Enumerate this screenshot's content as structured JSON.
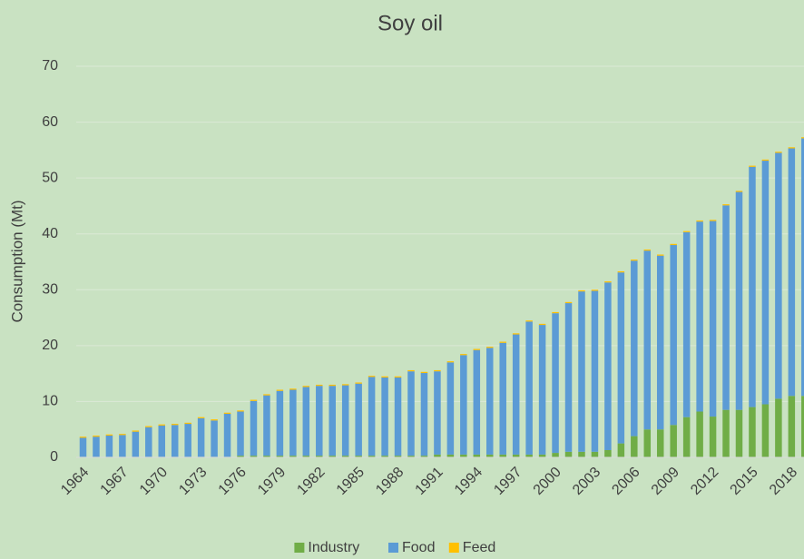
{
  "chart_data": {
    "type": "bar",
    "stacked": true,
    "title": "Soy oil",
    "y_label": "Consumption (Mt)",
    "categories": [
      "1964",
      null,
      null,
      "1967",
      null,
      null,
      "1970",
      null,
      null,
      "1973",
      null,
      null,
      "1976",
      null,
      null,
      "1979",
      null,
      null,
      "1982",
      null,
      null,
      "1985",
      null,
      null,
      "1988",
      null,
      null,
      "1991",
      null,
      null,
      "1994",
      null,
      null,
      "1997",
      null,
      null,
      "2000",
      null,
      null,
      "2003",
      null,
      null,
      "2006",
      null,
      null,
      "2009",
      null,
      null,
      "2012",
      null,
      null,
      "2015",
      null,
      null,
      "2018",
      null
    ],
    "series": [
      {
        "name": "Industry",
        "color": "#70ad47",
        "values": [
          0.1,
          0.1,
          0.1,
          0.1,
          0.1,
          0.1,
          0.1,
          0.1,
          0.1,
          0.1,
          0.1,
          0.1,
          0.3,
          0.3,
          0.3,
          0.3,
          0.3,
          0.3,
          0.3,
          0.3,
          0.3,
          0.3,
          0.3,
          0.3,
          0.3,
          0.3,
          0.3,
          0.5,
          0.5,
          0.5,
          0.5,
          0.5,
          0.5,
          0.5,
          0.5,
          0.5,
          0.8,
          1.0,
          1.0,
          1.0,
          1.3,
          2.5,
          3.8,
          5.0,
          5.0,
          5.8,
          7.2,
          8.2,
          7.3,
          8.5,
          8.5,
          9.0,
          9.5,
          10.5,
          11.0,
          11.0
        ]
      },
      {
        "name": "Food",
        "color": "#5b9bd5",
        "values": [
          3.4,
          3.6,
          3.8,
          3.9,
          4.5,
          5.3,
          5.6,
          5.7,
          5.9,
          6.9,
          6.5,
          7.7,
          7.9,
          9.8,
          10.8,
          11.6,
          11.8,
          12.3,
          12.5,
          12.5,
          12.6,
          12.9,
          14.1,
          14.0,
          14.0,
          15.1,
          14.8,
          14.9,
          16.5,
          17.8,
          18.7,
          19.1,
          20.0,
          21.5,
          23.8,
          23.2,
          25.0,
          26.6,
          28.7,
          28.8,
          30.0,
          30.6,
          31.4,
          32.0,
          31.1,
          32.2,
          33.1,
          34.0,
          35.0,
          36.6,
          39.0,
          43.0,
          43.6,
          44.0,
          44.3,
          46.1
        ]
      },
      {
        "name": "Feed",
        "color": "#ffc000",
        "values": [
          0.2,
          0.2,
          0.2,
          0.2,
          0.2,
          0.2,
          0.2,
          0.2,
          0.2,
          0.2,
          0.2,
          0.2,
          0.2,
          0.2,
          0.2,
          0.2,
          0.2,
          0.2,
          0.2,
          0.2,
          0.2,
          0.2,
          0.2,
          0.2,
          0.2,
          0.2,
          0.2,
          0.2,
          0.2,
          0.2,
          0.2,
          0.2,
          0.2,
          0.2,
          0.2,
          0.2,
          0.2,
          0.2,
          0.2,
          0.2,
          0.2,
          0.2,
          0.2,
          0.2,
          0.2,
          0.2,
          0.2,
          0.2,
          0.2,
          0.2,
          0.2,
          0.2,
          0.2,
          0.2,
          0.2,
          0.2
        ]
      }
    ],
    "ylim": [
      0,
      70
    ],
    "yticks": [
      0,
      10,
      20,
      30,
      40,
      50,
      60,
      70
    ],
    "grid": true,
    "legend": "bottom"
  }
}
